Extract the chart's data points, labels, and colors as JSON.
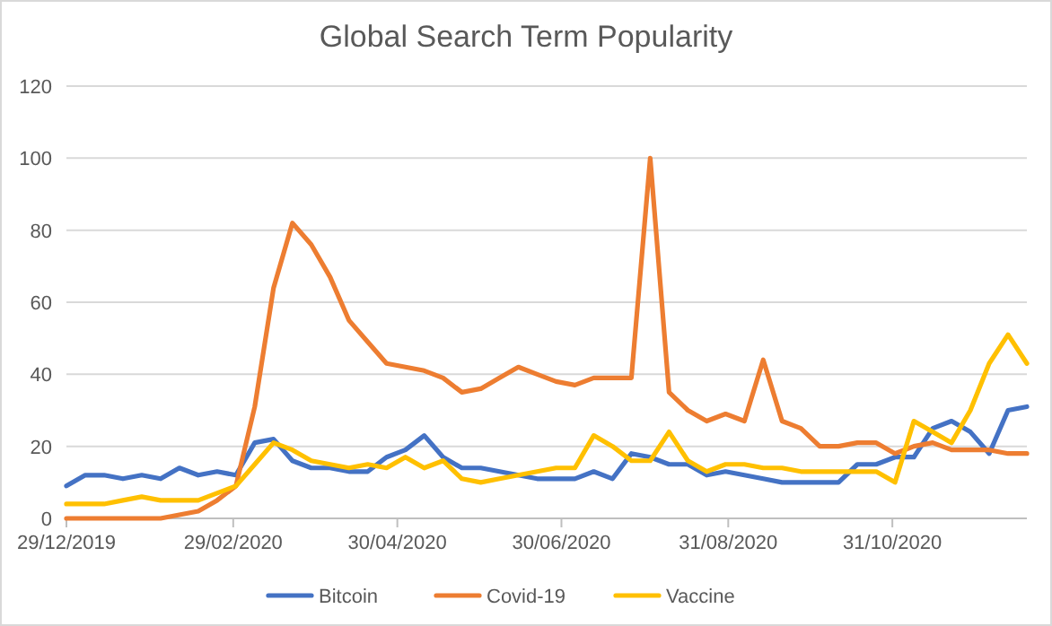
{
  "chart_data": {
    "type": "line",
    "title": "Global Search Term Popularity",
    "x": [
      "2019-12-29",
      "2020-01-05",
      "2020-01-12",
      "2020-01-19",
      "2020-01-26",
      "2020-02-02",
      "2020-02-09",
      "2020-02-16",
      "2020-02-23",
      "2020-03-01",
      "2020-03-08",
      "2020-03-15",
      "2020-03-22",
      "2020-03-29",
      "2020-04-05",
      "2020-04-12",
      "2020-04-19",
      "2020-04-26",
      "2020-05-03",
      "2020-05-10",
      "2020-05-17",
      "2020-05-24",
      "2020-05-31",
      "2020-06-07",
      "2020-06-14",
      "2020-06-21",
      "2020-06-28",
      "2020-07-05",
      "2020-07-12",
      "2020-07-19",
      "2020-07-26",
      "2020-08-02",
      "2020-08-09",
      "2020-08-16",
      "2020-08-23",
      "2020-08-30",
      "2020-09-06",
      "2020-09-13",
      "2020-09-20",
      "2020-09-27",
      "2020-10-04",
      "2020-10-11",
      "2020-10-18",
      "2020-10-25",
      "2020-11-01",
      "2020-11-08",
      "2020-11-15",
      "2020-11-22",
      "2020-11-29",
      "2020-12-06",
      "2020-12-13",
      "2020-12-20"
    ],
    "series": [
      {
        "name": "Bitcoin",
        "color": "#4472c4",
        "values": [
          9,
          12,
          12,
          11,
          12,
          11,
          14,
          12,
          13,
          12,
          21,
          22,
          16,
          14,
          14,
          13,
          13,
          17,
          19,
          23,
          17,
          14,
          14,
          13,
          12,
          11,
          11,
          11,
          13,
          11,
          18,
          17,
          15,
          15,
          12,
          13,
          12,
          11,
          10,
          10,
          10,
          10,
          15,
          15,
          17,
          17,
          25,
          27,
          24,
          18,
          30,
          31
        ]
      },
      {
        "name": "Covid-19",
        "color": "#ed7d31",
        "values": [
          0,
          0,
          0,
          0,
          0,
          0,
          1,
          2,
          5,
          9,
          31,
          64,
          82,
          76,
          67,
          55,
          49,
          43,
          42,
          41,
          39,
          35,
          36,
          39,
          42,
          40,
          38,
          37,
          39,
          39,
          39,
          100,
          35,
          30,
          27,
          29,
          27,
          44,
          27,
          25,
          20,
          20,
          21,
          21,
          18,
          20,
          21,
          19,
          19,
          19,
          18,
          18
        ]
      },
      {
        "name": "Vaccine",
        "color": "#ffc000",
        "values": [
          4,
          4,
          4,
          5,
          6,
          5,
          5,
          5,
          7,
          9,
          15,
          21,
          19,
          16,
          15,
          14,
          15,
          14,
          17,
          14,
          16,
          11,
          10,
          11,
          12,
          13,
          14,
          14,
          23,
          20,
          16,
          16,
          24,
          16,
          13,
          15,
          15,
          14,
          14,
          13,
          13,
          13,
          13,
          13,
          10,
          27,
          24,
          21,
          30,
          43,
          51,
          43
        ]
      }
    ],
    "xlim": [
      "2019-12-29",
      "2020-12-20"
    ],
    "xticks": [
      {
        "value": "2019-12-29",
        "label": "29/12/2019"
      },
      {
        "value": "2020-02-29",
        "label": "29/02/2020"
      },
      {
        "value": "2020-04-30",
        "label": "30/04/2020"
      },
      {
        "value": "2020-06-30",
        "label": "30/06/2020"
      },
      {
        "value": "2020-08-31",
        "label": "31/08/2020"
      },
      {
        "value": "2020-10-31",
        "label": "31/10/2020"
      }
    ],
    "ylim": [
      0,
      120
    ],
    "yticks": [
      0,
      20,
      40,
      60,
      80,
      100,
      120
    ],
    "grid": "y",
    "legend": "bottom",
    "marker": "none",
    "line_style": "solid"
  }
}
